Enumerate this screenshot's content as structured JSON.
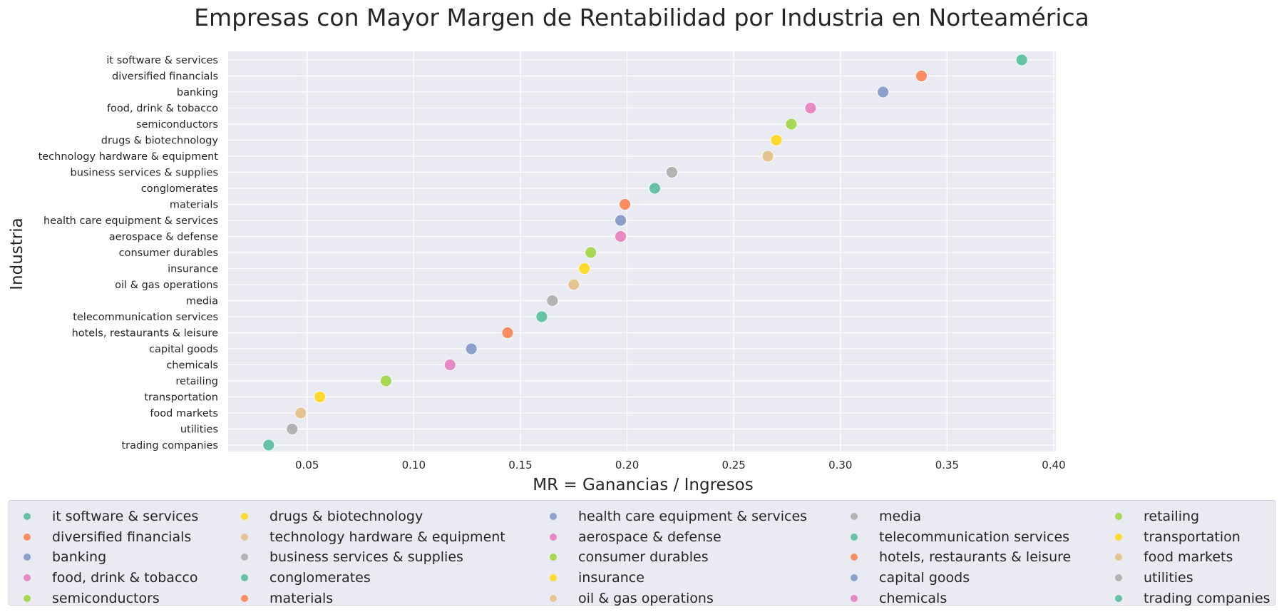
{
  "chart_data": {
    "type": "scatter",
    "title": "Empresas con Mayor Margen de Rentabilidad por Industria en Norteamérica",
    "xlabel": "MR = Ganancias / Ingresos",
    "ylabel": "Industria",
    "xlim": [
      0.013,
      0.401
    ],
    "xticks": [
      0.05,
      0.1,
      0.15,
      0.2,
      0.25,
      0.3,
      0.35,
      0.4
    ],
    "xtick_labels": [
      "0.05",
      "0.10",
      "0.15",
      "0.20",
      "0.25",
      "0.30",
      "0.35",
      "0.40"
    ],
    "grid": true,
    "legend_position": "bottom",
    "palette": [
      "#66c2a5",
      "#fc8d62",
      "#8da0cb",
      "#e78ac3",
      "#a6d854",
      "#ffd92f",
      "#e5c494",
      "#b3b3b3"
    ],
    "categories": [
      "it software & services",
      "diversified financials",
      "banking",
      "food, drink & tobacco",
      "semiconductors",
      "drugs & biotechnology",
      "technology hardware & equipment",
      "business services & supplies",
      "conglomerates",
      "materials",
      "health care equipment & services",
      "aerospace & defense",
      "consumer durables",
      "insurance",
      "oil & gas operations",
      "media",
      "telecommunication services",
      "hotels, restaurants & leisure",
      "capital goods",
      "chemicals",
      "retailing",
      "transportation",
      "food markets",
      "utilities",
      "trading companies"
    ],
    "values": [
      0.385,
      0.338,
      0.32,
      0.286,
      0.277,
      0.27,
      0.266,
      0.221,
      0.213,
      0.199,
      0.197,
      0.197,
      0.183,
      0.18,
      0.175,
      0.165,
      0.16,
      0.144,
      0.127,
      0.117,
      0.087,
      0.056,
      0.047,
      0.043,
      0.032
    ]
  }
}
